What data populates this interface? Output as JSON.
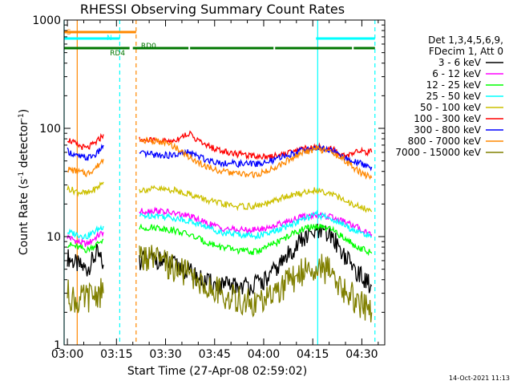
{
  "chart_data": {
    "type": "line",
    "title": "RHESSI Observing Summary Count Rates",
    "xlabel": "Start Time (27-Apr-08 02:59:02)",
    "ylabel_main": "Count Rate (s",
    "ylabel_sup1": "-1",
    "ylabel_mid": " detector",
    "ylabel_sup2": "-1",
    "ylabel_end": ")",
    "yscale": "log",
    "ylim": [
      1,
      1000
    ],
    "xlim_min": [
      0,
      98
    ],
    "ytick_labels": [
      "1",
      "10",
      "100",
      "1000"
    ],
    "ytick_values": [
      1,
      10,
      100,
      1000
    ],
    "xtick_labels": [
      "03:00",
      "03:15",
      "03:30",
      "03:45",
      "04:00",
      "04:15",
      "04:30"
    ],
    "xtick_minutes": [
      1,
      16,
      31,
      46,
      61,
      76,
      91
    ],
    "footer_date": "14-Oct-2021 11:13",
    "legend_header": [
      "Det 1,3,4,5,6,9,",
      "FDecim 1, Att 0"
    ],
    "series": [
      {
        "name": "3 - 6 keV",
        "color": "#000000",
        "segments": [
          [
            [
              1,
              6.5
            ],
            [
              4,
              5.5
            ],
            [
              7,
              5
            ],
            [
              10,
              7
            ],
            [
              12,
              5.5
            ]
          ],
          [
            [
              23,
              6
            ],
            [
              28,
              6.2
            ],
            [
              33,
              5.5
            ],
            [
              38,
              4.8
            ],
            [
              43,
              3.8
            ],
            [
              48,
              3.5
            ],
            [
              53,
              3.5
            ],
            [
              58,
              3.6
            ],
            [
              62,
              4
            ],
            [
              67,
              6
            ],
            [
              72,
              9
            ],
            [
              77,
              11
            ],
            [
              82,
              10
            ],
            [
              86,
              6.5
            ],
            [
              90,
              4.5
            ],
            [
              94,
              3.5
            ]
          ]
        ]
      },
      {
        "name": "6 - 12 keV",
        "color": "#ff00ff",
        "segments": [
          [
            [
              1,
              10
            ],
            [
              4,
              9
            ],
            [
              7,
              8.5
            ],
            [
              10,
              10
            ],
            [
              12,
              11
            ]
          ],
          [
            [
              23,
              17
            ],
            [
              28,
              17.5
            ],
            [
              33,
              16.5
            ],
            [
              38,
              15.5
            ],
            [
              43,
              13.5
            ],
            [
              48,
              12
            ],
            [
              53,
              11.5
            ],
            [
              58,
              11.5
            ],
            [
              62,
              12
            ],
            [
              67,
              13.5
            ],
            [
              72,
              15
            ],
            [
              77,
              16
            ],
            [
              82,
              15
            ],
            [
              86,
              13.5
            ],
            [
              90,
              12
            ],
            [
              94,
              10.5
            ]
          ]
        ]
      },
      {
        "name": "12 - 25 keV",
        "color": "#00ff00",
        "segments": [
          [
            [
              1,
              8.5
            ],
            [
              4,
              8
            ],
            [
              7,
              7.5
            ],
            [
              10,
              8.5
            ],
            [
              12,
              9.5
            ]
          ],
          [
            [
              23,
              12
            ],
            [
              28,
              12.2
            ],
            [
              33,
              11.5
            ],
            [
              38,
              10.5
            ],
            [
              43,
              9
            ],
            [
              48,
              8
            ],
            [
              53,
              7.5
            ],
            [
              58,
              7.2
            ],
            [
              62,
              8
            ],
            [
              67,
              9.5
            ],
            [
              72,
              11.5
            ],
            [
              77,
              12.5
            ],
            [
              82,
              11.5
            ],
            [
              86,
              9.5
            ],
            [
              90,
              8
            ],
            [
              94,
              7
            ]
          ]
        ]
      },
      {
        "name": "25 - 50 keV",
        "color": "#00ffff",
        "segments": [
          [
            [
              1,
              11
            ],
            [
              4,
              10.5
            ],
            [
              7,
              10
            ],
            [
              10,
              11.5
            ],
            [
              12,
              12.5
            ]
          ],
          [
            [
              23,
              15.5
            ],
            [
              28,
              15.8
            ],
            [
              33,
              15
            ],
            [
              38,
              14
            ],
            [
              43,
              12.5
            ],
            [
              48,
              11
            ],
            [
              53,
              10.5
            ],
            [
              58,
              10.2
            ],
            [
              62,
              10.5
            ],
            [
              67,
              12
            ],
            [
              72,
              14
            ],
            [
              77,
              16
            ],
            [
              82,
              14.5
            ],
            [
              86,
              12.5
            ],
            [
              90,
              11
            ],
            [
              94,
              10
            ]
          ]
        ]
      },
      {
        "name": "50 - 100 keV",
        "color": "#ccc000",
        "segments": [
          [
            [
              1,
              28
            ],
            [
              4,
              26
            ],
            [
              7,
              25
            ],
            [
              10,
              28
            ],
            [
              12,
              32
            ]
          ],
          [
            [
              23,
              27
            ],
            [
              28,
              27.5
            ],
            [
              33,
              27
            ],
            [
              38,
              25
            ],
            [
              43,
              22
            ],
            [
              48,
              20
            ],
            [
              53,
              19
            ],
            [
              58,
              19
            ],
            [
              62,
              20
            ],
            [
              67,
              23
            ],
            [
              72,
              25
            ],
            [
              77,
              27
            ],
            [
              82,
              25
            ],
            [
              86,
              21
            ],
            [
              90,
              19
            ],
            [
              94,
              17
            ]
          ]
        ]
      },
      {
        "name": "100 - 300 keV",
        "color": "#ff0000",
        "segments": [
          [
            [
              1,
              80
            ],
            [
              4,
              70
            ],
            [
              7,
              65
            ],
            [
              10,
              75
            ],
            [
              12,
              88
            ]
          ],
          [
            [
              23,
              78
            ],
            [
              28,
              77
            ],
            [
              33,
              76
            ],
            [
              38,
              90
            ],
            [
              43,
              70
            ],
            [
              48,
              62
            ],
            [
              53,
              58
            ],
            [
              58,
              56
            ],
            [
              62,
              55
            ],
            [
              67,
              58
            ],
            [
              72,
              64
            ],
            [
              77,
              68
            ],
            [
              82,
              64
            ],
            [
              86,
              55
            ],
            [
              90,
              62
            ],
            [
              94,
              60
            ]
          ]
        ]
      },
      {
        "name": "300 - 800 keV",
        "color": "#0000ff",
        "segments": [
          [
            [
              1,
              62
            ],
            [
              4,
              55
            ],
            [
              7,
              53
            ],
            [
              10,
              58
            ],
            [
              12,
              70
            ]
          ],
          [
            [
              23,
              58
            ],
            [
              28,
              57
            ],
            [
              33,
              56
            ],
            [
              38,
              60
            ],
            [
              43,
              52
            ],
            [
              48,
              48
            ],
            [
              53,
              47
            ],
            [
              58,
              47
            ],
            [
              62,
              48
            ],
            [
              67,
              55
            ],
            [
              72,
              62
            ],
            [
              77,
              66
            ],
            [
              82,
              62
            ],
            [
              86,
              52
            ],
            [
              90,
              48
            ],
            [
              94,
              44
            ]
          ]
        ]
      },
      {
        "name": "800 - 7000 keV",
        "color": "#ff8800",
        "segments": [
          [
            [
              1,
              42
            ],
            [
              4,
              40
            ],
            [
              7,
              38
            ],
            [
              10,
              44
            ],
            [
              12,
              52
            ]
          ],
          [
            [
              23,
              78
            ],
            [
              28,
              76
            ],
            [
              33,
              70
            ],
            [
              38,
              55
            ],
            [
              43,
              45
            ],
            [
              48,
              40
            ],
            [
              53,
              38
            ],
            [
              58,
              37
            ],
            [
              62,
              40
            ],
            [
              67,
              48
            ],
            [
              72,
              58
            ],
            [
              77,
              65
            ],
            [
              82,
              60
            ],
            [
              86,
              50
            ],
            [
              90,
              40
            ],
            [
              94,
              35
            ]
          ]
        ]
      },
      {
        "name": "7000 - 15000 keV",
        "color": "#808000",
        "segments": [
          [
            [
              1,
              3
            ],
            [
              4,
              2.5
            ],
            [
              7,
              2.7
            ],
            [
              10,
              3
            ],
            [
              12,
              3
            ]
          ],
          [
            [
              23,
              6.5
            ],
            [
              28,
              6
            ],
            [
              33,
              5.2
            ],
            [
              38,
              4.5
            ],
            [
              43,
              3.5
            ],
            [
              48,
              3
            ],
            [
              53,
              2.6
            ],
            [
              58,
              2.4
            ],
            [
              62,
              2.6
            ],
            [
              67,
              3.5
            ],
            [
              72,
              4.6
            ],
            [
              77,
              5.5
            ],
            [
              82,
              4.5
            ],
            [
              86,
              3.2
            ],
            [
              90,
              2.4
            ],
            [
              94,
              2
            ]
          ]
        ]
      }
    ],
    "state_bars": [
      {
        "label": "S",
        "color": "#ff8800",
        "level": "s",
        "ranges": [
          [
            0,
            22
          ]
        ]
      },
      {
        "label": "N",
        "color": "#00ffff",
        "level": "n",
        "ranges": [
          [
            0,
            17
          ],
          [
            77,
            95
          ]
        ]
      },
      {
        "label": "RD4",
        "color": "#007700",
        "level": "rd",
        "ranges": [
          [
            0,
            20
          ],
          [
            21,
            38
          ],
          [
            38.5,
            64
          ],
          [
            64.5,
            88
          ],
          [
            88.5,
            95
          ]
        ]
      },
      {
        "label": "RD0",
        "color": "#007700",
        "level": "none",
        "ranges": []
      }
    ],
    "vertical_lines": [
      {
        "minute": 4,
        "color": "#ff8800",
        "style": "solid"
      },
      {
        "minute": 0,
        "color": "#00ffff",
        "style": "solid"
      },
      {
        "minute": 17,
        "color": "#00ffff",
        "style": "dashed"
      },
      {
        "minute": 22,
        "color": "#ff8800",
        "style": "dashed"
      },
      {
        "minute": 77.5,
        "color": "#00ffff",
        "style": "solid"
      },
      {
        "minute": 95,
        "color": "#00ffff",
        "style": "dashed"
      }
    ]
  }
}
